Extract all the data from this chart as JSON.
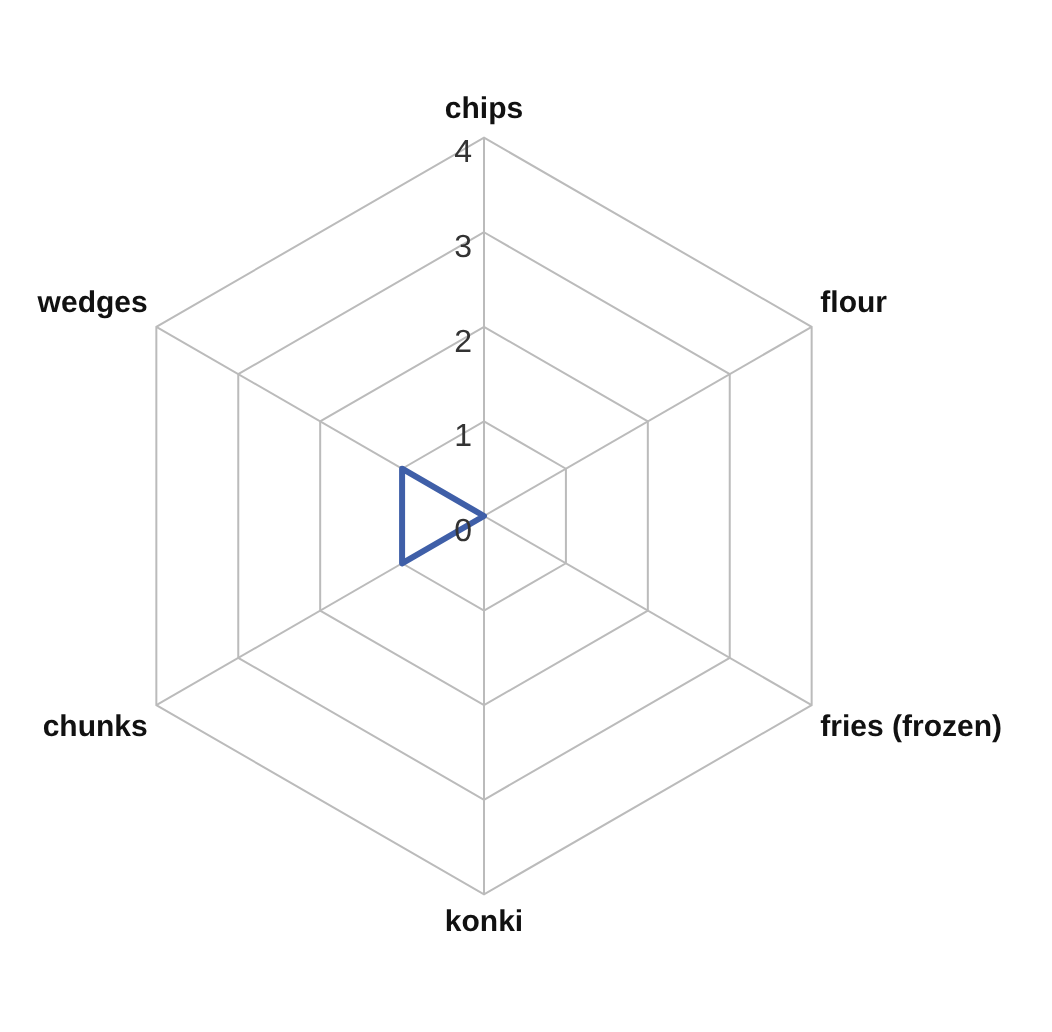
{
  "chart_data": {
    "type": "radar",
    "categories": [
      "chips",
      "flour",
      "fries (frozen)",
      "konki",
      "chunks",
      "wedges"
    ],
    "series": [
      {
        "color": "#3f5fa8",
        "values": [
          0,
          0,
          0,
          0,
          1,
          1
        ]
      }
    ],
    "ylim": [
      0,
      4
    ],
    "yticks": [
      0,
      1,
      2,
      3,
      4
    ],
    "grid": true,
    "legend": false,
    "marker": "none"
  }
}
